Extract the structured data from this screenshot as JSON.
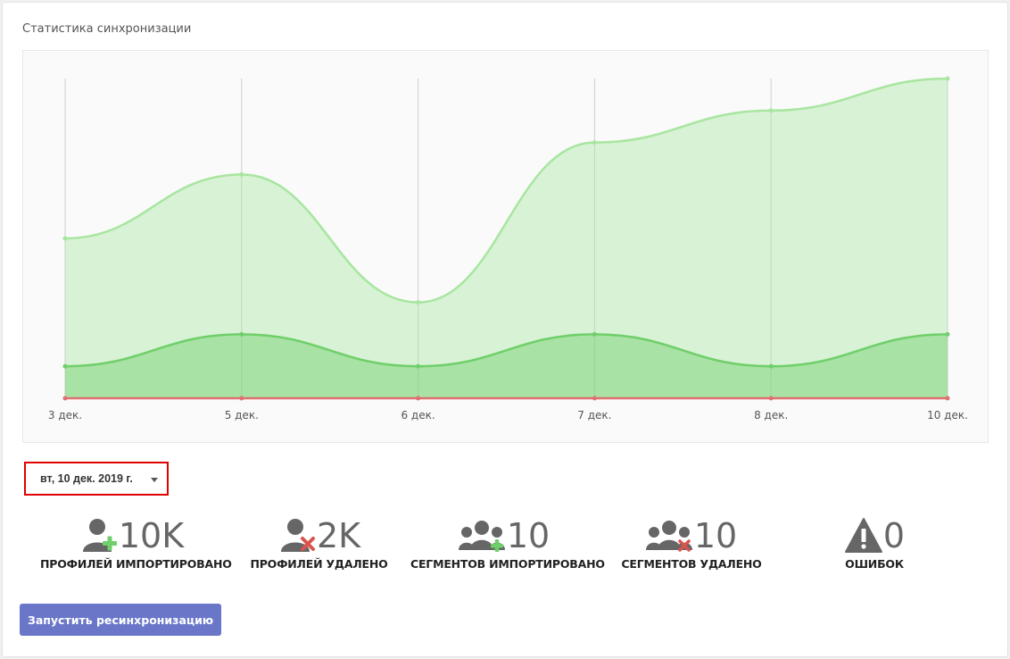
{
  "card": {
    "title": "Статистика синхронизации"
  },
  "chart_data": {
    "type": "area",
    "categories": [
      "3 дек.",
      "5 дек.",
      "6 дек.",
      "7 дек.",
      "8 дек.",
      "10 дек."
    ],
    "series": [
      {
        "values": [
          50,
          70,
          30,
          80,
          90,
          100
        ],
        "color": "#a8e6a0"
      },
      {
        "values": [
          10,
          20,
          10,
          20,
          10,
          20
        ],
        "color": "#6fcf6a"
      },
      {
        "values": [
          0,
          0,
          0,
          0,
          0,
          0
        ],
        "color": "#e07070"
      }
    ],
    "ylim": [
      0,
      100
    ],
    "grid": true
  },
  "date_select": {
    "value": "вт, 10 дек. 2019 г."
  },
  "stats": [
    {
      "value": "10K",
      "label": "ПРОФИЛЕЙ ИМПОРТИРОВАНО",
      "icon": "user-add-icon"
    },
    {
      "value": "2K",
      "label": "ПРОФИЛЕЙ УДАЛЕНО",
      "icon": "user-remove-icon"
    },
    {
      "value": "10",
      "label": "СЕГМЕНТОВ ИМПОРТИРОВАНО",
      "icon": "group-add-icon"
    },
    {
      "value": "10",
      "label": "СЕГМЕНТОВ УДАЛЕНО",
      "icon": "group-remove-icon"
    },
    {
      "value": "0",
      "label": "ОШИБОК",
      "icon": "warning-icon"
    }
  ],
  "resync_button": {
    "label": "Запустить ресинхронизацию"
  }
}
